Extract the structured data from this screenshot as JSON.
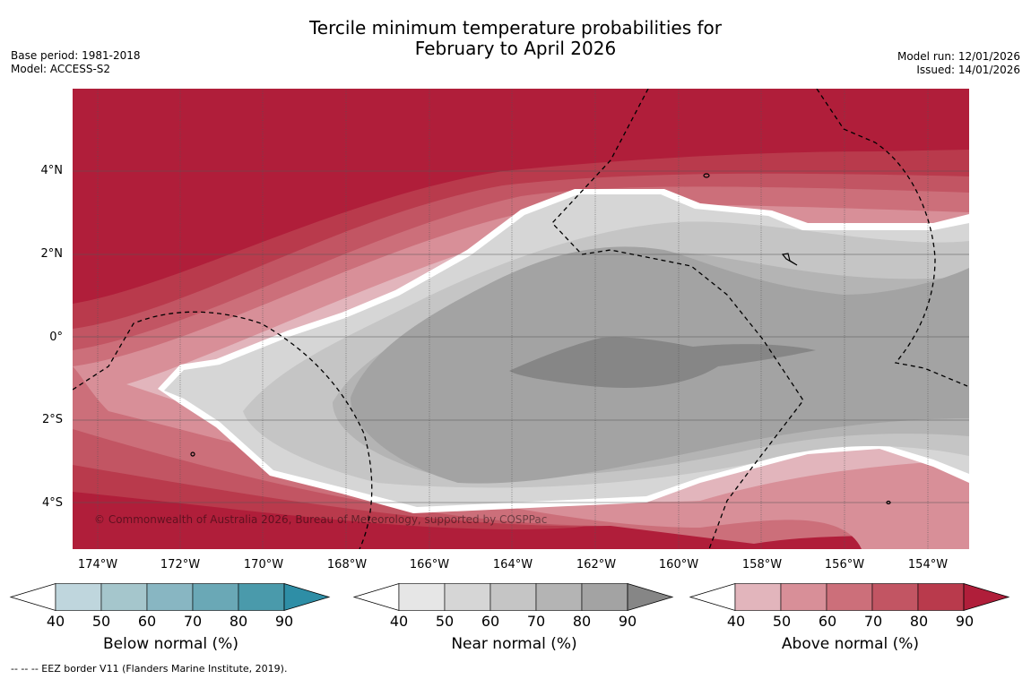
{
  "title_line1": "Tercile minimum temperature probabilities for",
  "title_line2": "February to April 2026",
  "meta_left": {
    "base_period": "Base period: 1981-2018",
    "model": "Model: ACCESS-S2"
  },
  "meta_right": {
    "model_run": "Model run: 12/01/2026",
    "issued": "Issued: 14/01/2026"
  },
  "copyright": "© Commonwealth of Australia 2026, Bureau of Meteorology, supported by COSPPac",
  "lat_labels": [
    "4°N",
    "2°N",
    "0°",
    "2°S",
    "4°S"
  ],
  "lon_labels": [
    "174°W",
    "172°W",
    "170°W",
    "168°W",
    "166°W",
    "164°W",
    "162°W",
    "160°W",
    "158°W",
    "156°W",
    "154°W"
  ],
  "legends": [
    {
      "title": "Below normal (%)",
      "ticks": [
        "40",
        "50",
        "60",
        "70",
        "80",
        "90"
      ],
      "colors": [
        "#bfd6dd",
        "#a5c6cc",
        "#88b6c2",
        "#6aa8b6",
        "#4a9aab",
        "#2e8ea6"
      ]
    },
    {
      "title": "Near normal (%)",
      "ticks": [
        "40",
        "50",
        "60",
        "70",
        "80",
        "90"
      ],
      "colors": [
        "#e6e6e6",
        "#d6d6d6",
        "#c5c5c5",
        "#b4b4b4",
        "#a3a3a3",
        "#868686"
      ]
    },
    {
      "title": "Above normal (%)",
      "ticks": [
        "40",
        "50",
        "60",
        "70",
        "80",
        "90"
      ],
      "colors": [
        "#e2b5bc",
        "#d88f98",
        "#cc6f7a",
        "#c25563",
        "#b93a4c",
        "#b01e3a"
      ]
    }
  ],
  "footnote": "--  --  -- EEZ border V11 (Flanders Marine Institute, 2019).",
  "colors": {
    "above_90": "#b01e3a",
    "near_90": "#868686",
    "border": "#ffffff"
  }
}
